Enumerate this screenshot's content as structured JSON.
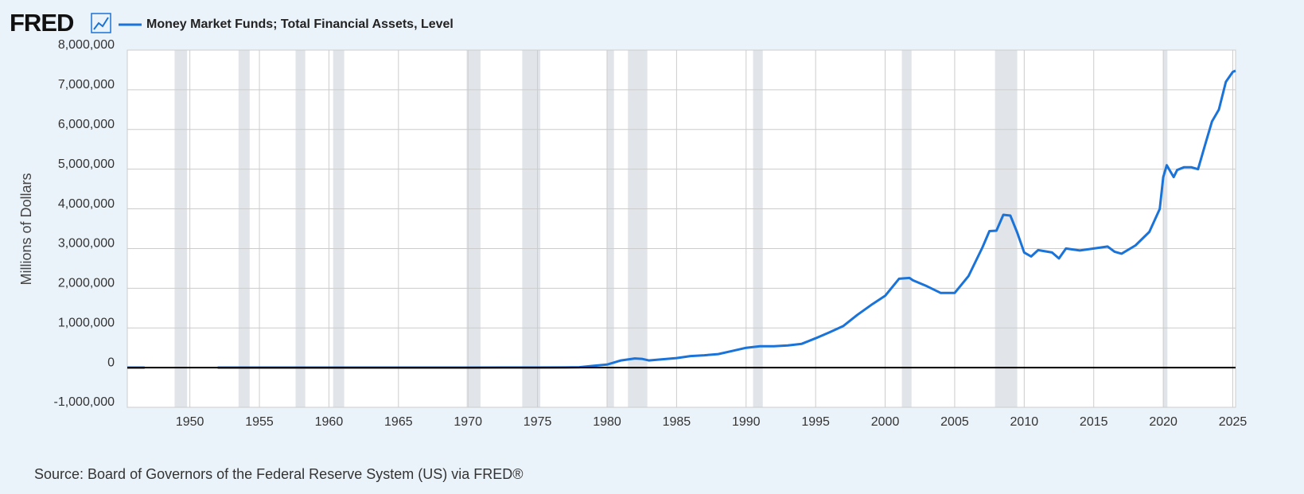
{
  "header": {
    "logo": "FRED",
    "legend": "Money Market Funds; Total Financial Assets, Level"
  },
  "source": "Source: Board of Governors of the Federal Reserve System (US) via FRED®",
  "chart_data": {
    "type": "line",
    "ylabel": "Millions of Dollars",
    "series": [
      {
        "name": "Money Market Funds; Total Financial Assets, Level",
        "color": "#1a73d8",
        "x": [
          1945.5,
          1946,
          1946.75,
          1951.7,
          1952,
          1960,
          1970,
          1975,
          1977,
          1978,
          1979,
          1980,
          1981,
          1982,
          1982.5,
          1983,
          1984,
          1985,
          1986,
          1987,
          1988,
          1989,
          1990,
          1991,
          1992,
          1993,
          1994,
          1995,
          1996,
          1997,
          1998,
          1999,
          2000,
          2001,
          2001.75,
          2002,
          2003,
          2004,
          2005,
          2006,
          2007,
          2007.5,
          2008,
          2008.5,
          2009,
          2009.5,
          2010,
          2010.5,
          2011,
          2012,
          2012.5,
          2013,
          2014,
          2015,
          2016,
          2016.5,
          2017,
          2018,
          2019,
          2019.75,
          2020,
          2020.25,
          2020.75,
          2021,
          2021.5,
          2022,
          2022.5,
          2023,
          2023.5,
          2024,
          2024.5,
          2025,
          2025.2
        ],
        "values": [
          0,
          0,
          0,
          null,
          0,
          0,
          0,
          3000,
          4000,
          10000,
          45000,
          76000,
          180000,
          230000,
          220000,
          180000,
          210000,
          240000,
          290000,
          310000,
          340000,
          420000,
          500000,
          540000,
          540000,
          560000,
          600000,
          740000,
          890000,
          1050000,
          1330000,
          1580000,
          1810000,
          2240000,
          2260000,
          2200000,
          2050000,
          1880000,
          1880000,
          2310000,
          3030000,
          3440000,
          3450000,
          3850000,
          3830000,
          3400000,
          2900000,
          2800000,
          2960000,
          2900000,
          2750000,
          3000000,
          2950000,
          3000000,
          3050000,
          2920000,
          2870000,
          3080000,
          3420000,
          4000000,
          4800000,
          5100000,
          4800000,
          4980000,
          5050000,
          5050000,
          5000000,
          5600000,
          6200000,
          6500000,
          7200000,
          7450000,
          7480000
        ]
      }
    ],
    "recessions": [
      [
        1948.9,
        1949.8
      ],
      [
        1953.5,
        1954.3
      ],
      [
        1957.6,
        1958.3
      ],
      [
        1960.3,
        1961.1
      ],
      [
        1969.9,
        1970.9
      ],
      [
        1973.9,
        1975.2
      ],
      [
        1980.0,
        1980.5
      ],
      [
        1981.5,
        1982.9
      ],
      [
        1990.5,
        1991.2
      ],
      [
        2001.2,
        2001.9
      ],
      [
        2007.9,
        2009.5
      ],
      [
        2020.0,
        2020.3
      ]
    ],
    "xlim": [
      1945.5,
      2025.2
    ],
    "xticks": [
      1950,
      1955,
      1960,
      1965,
      1970,
      1975,
      1980,
      1985,
      1990,
      1995,
      2000,
      2005,
      2010,
      2015,
      2020,
      2025
    ],
    "ylim": [
      -1000000,
      8000000
    ],
    "yticks": [
      {
        "value": -1000000,
        "label": "-1,000,000"
      },
      0,
      {
        "value": 1000000,
        "label": "1,000,000"
      },
      {
        "value": 2000000,
        "label": "2,000,000"
      },
      {
        "value": 3000000,
        "label": "3,000,000"
      },
      {
        "value": 4000000,
        "label": "4,000,000"
      },
      {
        "value": 5000000,
        "label": "5,000,000"
      },
      {
        "value": 6000000,
        "label": "6,000,000"
      },
      {
        "value": 7000000,
        "label": "7,000,000"
      },
      {
        "value": 8000000,
        "label": "8,000,000"
      }
    ],
    "grid": true
  }
}
